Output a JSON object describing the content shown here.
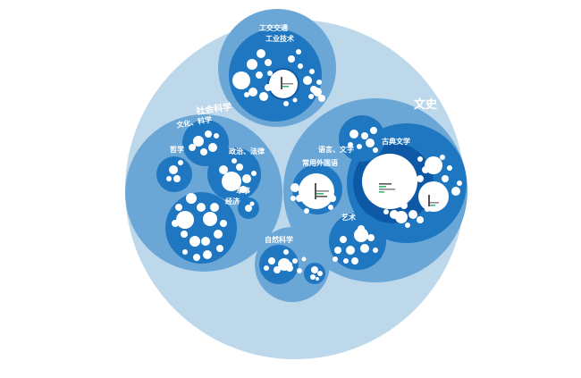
{
  "colors": {
    "root": "#bcd8ea",
    "level1": "#6aa6d6",
    "level2": "#1f77c1",
    "level3": "#0e59a5",
    "leaf": "#ffffff",
    "bar_green": "#3bb273",
    "bar_gray": "#888888"
  },
  "labels": {
    "wenshi": "文史",
    "shehui": "社会科学",
    "gongye_top": "工交交通",
    "gongye_tech": "工业技术",
    "ziran": "自然科学",
    "yuyan": "语言、文字",
    "changyong": "常用外国语",
    "guowen": "古典文学",
    "yishu": "艺术",
    "wenhua": "文化、科学",
    "zhengzhi": "政治、法律",
    "jingji": "经济",
    "junshi": "军事",
    "zuoyun": "哲学"
  }
}
